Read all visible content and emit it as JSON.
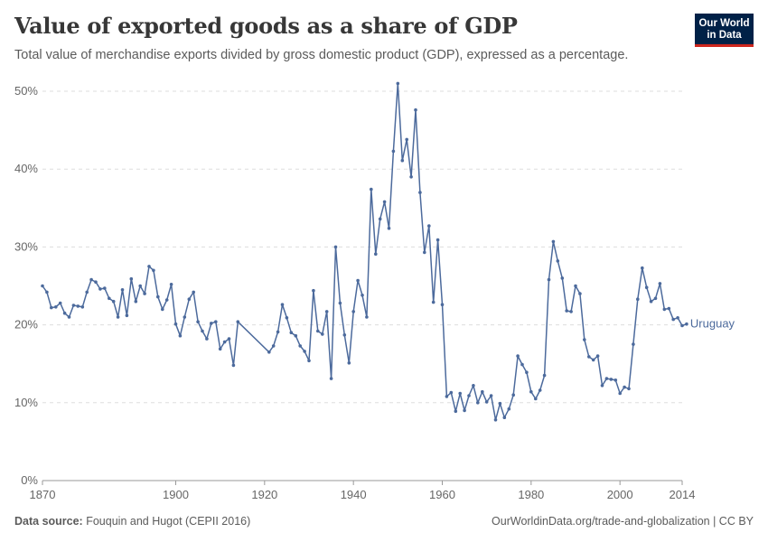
{
  "header": {
    "title": "Value of exported goods as a share of GDP",
    "subtitle": "Total value of merchandise exports divided by gross domestic product (GDP), expressed as a percentage."
  },
  "logo": {
    "line1": "Our World",
    "line2": "in Data"
  },
  "footer": {
    "source_label": "Data source:",
    "source_text": "Fouquin and Hugot (CEPII 2016)",
    "right_text": "OurWorldinData.org/trade-and-globalization | CC BY"
  },
  "colors": {
    "series": "#4c6a9c",
    "grid": "#dddddd",
    "axis": "#666666",
    "logo_bg": "#002147",
    "logo_accent": "#ce261e"
  },
  "chart_data": {
    "type": "line",
    "title": "Value of exported goods as a share of GDP",
    "xlabel": "",
    "ylabel": "",
    "xlim": [
      1870,
      2014
    ],
    "ylim": [
      0,
      50
    ],
    "x_ticks": [
      1870,
      1900,
      1920,
      1940,
      1960,
      1980,
      2000,
      2014
    ],
    "y_ticks": [
      0,
      10,
      20,
      30,
      40,
      50
    ],
    "y_tick_labels": [
      "0%",
      "10%",
      "20%",
      "30%",
      "40%",
      "50%"
    ],
    "grid": "horizontal dashed",
    "legend": "inline label at line end",
    "series": [
      {
        "name": "Uruguay",
        "points": [
          [
            1870,
            25.0
          ],
          [
            1871,
            24.2
          ],
          [
            1872,
            22.2
          ],
          [
            1873,
            22.3
          ],
          [
            1874,
            22.8
          ],
          [
            1875,
            21.5
          ],
          [
            1876,
            21.0
          ],
          [
            1877,
            22.5
          ],
          [
            1878,
            22.4
          ],
          [
            1879,
            22.3
          ],
          [
            1880,
            24.2
          ],
          [
            1881,
            25.8
          ],
          [
            1882,
            25.5
          ],
          [
            1883,
            24.6
          ],
          [
            1884,
            24.7
          ],
          [
            1885,
            23.4
          ],
          [
            1886,
            23.0
          ],
          [
            1887,
            21.0
          ],
          [
            1888,
            24.5
          ],
          [
            1889,
            21.2
          ],
          [
            1890,
            25.9
          ],
          [
            1891,
            23.0
          ],
          [
            1892,
            25.0
          ],
          [
            1893,
            24.0
          ],
          [
            1894,
            27.5
          ],
          [
            1895,
            27.0
          ],
          [
            1896,
            23.6
          ],
          [
            1897,
            22.0
          ],
          [
            1898,
            23.2
          ],
          [
            1899,
            25.2
          ],
          [
            1900,
            20.1
          ],
          [
            1901,
            18.6
          ],
          [
            1902,
            21.0
          ],
          [
            1903,
            23.3
          ],
          [
            1904,
            24.2
          ],
          [
            1905,
            20.4
          ],
          [
            1906,
            19.2
          ],
          [
            1907,
            18.2
          ],
          [
            1908,
            20.2
          ],
          [
            1909,
            20.4
          ],
          [
            1910,
            16.9
          ],
          [
            1911,
            17.8
          ],
          [
            1912,
            18.2
          ],
          [
            1913,
            14.8
          ],
          [
            1914,
            20.4
          ],
          [
            1921,
            16.5
          ],
          [
            1922,
            17.3
          ],
          [
            1923,
            19.1
          ],
          [
            1924,
            22.6
          ],
          [
            1925,
            20.9
          ],
          [
            1926,
            19.0
          ],
          [
            1927,
            18.6
          ],
          [
            1928,
            17.3
          ],
          [
            1929,
            16.6
          ],
          [
            1930,
            15.4
          ],
          [
            1931,
            24.4
          ],
          [
            1932,
            19.2
          ],
          [
            1933,
            18.8
          ],
          [
            1934,
            21.7
          ],
          [
            1935,
            13.1
          ],
          [
            1936,
            30.0
          ],
          [
            1937,
            22.8
          ],
          [
            1938,
            18.7
          ],
          [
            1939,
            15.1
          ],
          [
            1940,
            21.7
          ],
          [
            1941,
            25.7
          ],
          [
            1942,
            23.8
          ],
          [
            1943,
            21.0
          ],
          [
            1944,
            37.4
          ],
          [
            1945,
            29.1
          ],
          [
            1946,
            33.6
          ],
          [
            1947,
            35.8
          ],
          [
            1948,
            32.4
          ],
          [
            1949,
            42.3
          ],
          [
            1950,
            51.0
          ],
          [
            1951,
            41.1
          ],
          [
            1952,
            43.8
          ],
          [
            1953,
            39.0
          ],
          [
            1954,
            47.6
          ],
          [
            1955,
            37.0
          ],
          [
            1956,
            29.3
          ],
          [
            1957,
            32.7
          ],
          [
            1958,
            22.9
          ],
          [
            1959,
            30.9
          ],
          [
            1960,
            22.6
          ],
          [
            1961,
            10.8
          ],
          [
            1962,
            11.3
          ],
          [
            1963,
            8.9
          ],
          [
            1964,
            11.2
          ],
          [
            1965,
            9.0
          ],
          [
            1966,
            10.9
          ],
          [
            1967,
            12.2
          ],
          [
            1968,
            10.0
          ],
          [
            1969,
            11.4
          ],
          [
            1970,
            10.1
          ],
          [
            1971,
            10.9
          ],
          [
            1972,
            7.8
          ],
          [
            1973,
            9.9
          ],
          [
            1974,
            8.1
          ],
          [
            1975,
            9.2
          ],
          [
            1976,
            11.0
          ],
          [
            1977,
            16.0
          ],
          [
            1978,
            14.9
          ],
          [
            1979,
            13.9
          ],
          [
            1980,
            11.4
          ],
          [
            1981,
            10.5
          ],
          [
            1982,
            11.6
          ],
          [
            1983,
            13.5
          ],
          [
            1984,
            25.8
          ],
          [
            1985,
            30.7
          ],
          [
            1986,
            28.2
          ],
          [
            1987,
            26.0
          ],
          [
            1988,
            21.8
          ],
          [
            1989,
            21.7
          ],
          [
            1990,
            25.0
          ],
          [
            1991,
            24.0
          ],
          [
            1992,
            18.1
          ],
          [
            1993,
            15.9
          ],
          [
            1994,
            15.5
          ],
          [
            1995,
            16.0
          ],
          [
            1996,
            12.2
          ],
          [
            1997,
            13.1
          ],
          [
            1998,
            13.0
          ],
          [
            1999,
            12.9
          ],
          [
            2000,
            11.2
          ],
          [
            2001,
            12.0
          ],
          [
            2002,
            11.8
          ],
          [
            2003,
            17.5
          ],
          [
            2004,
            23.3
          ],
          [
            2005,
            27.3
          ],
          [
            2006,
            24.8
          ],
          [
            2007,
            23.0
          ],
          [
            2008,
            23.4
          ],
          [
            2009,
            25.3
          ],
          [
            2010,
            22.0
          ],
          [
            2011,
            22.1
          ],
          [
            2012,
            20.7
          ],
          [
            2013,
            20.9
          ],
          [
            2014,
            19.9
          ],
          [
            2015,
            20.1
          ]
        ]
      }
    ]
  }
}
